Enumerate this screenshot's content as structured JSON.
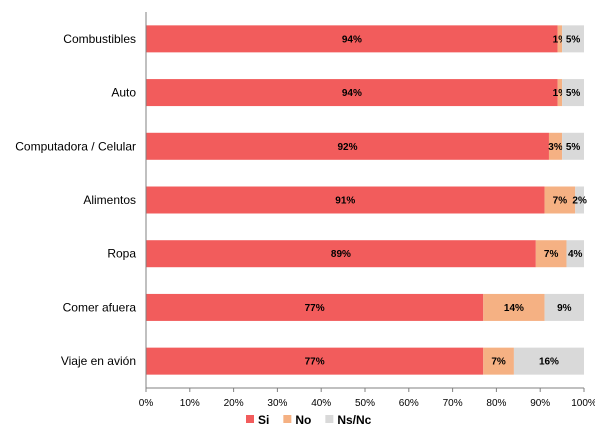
{
  "chart_data": {
    "type": "bar",
    "orientation": "horizontal",
    "stacked": true,
    "title": "",
    "xlabel": "",
    "ylabel": "",
    "xlim": [
      0,
      100
    ],
    "x_ticks": [
      "0%",
      "10%",
      "20%",
      "30%",
      "40%",
      "50%",
      "60%",
      "70%",
      "80%",
      "90%",
      "100%"
    ],
    "grid": false,
    "legend_position": "bottom",
    "categories": [
      "Combustibles",
      "Auto",
      "Computadora / Celular",
      "Alimentos",
      "Ropa",
      "Comer afuera",
      "Viaje en avión"
    ],
    "series": [
      {
        "name": "Si",
        "color": "#f25c5c",
        "values": [
          94,
          94,
          92,
          91,
          89,
          77,
          77
        ],
        "labels": [
          "94%",
          "94%",
          "92%",
          "91%",
          "89%",
          "77%",
          "77%"
        ]
      },
      {
        "name": "No",
        "color": "#f5b183",
        "values": [
          1,
          1,
          3,
          7,
          7,
          14,
          7
        ],
        "labels": [
          "1%",
          "1%",
          "3%",
          "7%",
          "7%",
          "14%",
          "7%"
        ]
      },
      {
        "name": "Ns/Nc",
        "color": "#d9d9d9",
        "values": [
          5,
          5,
          5,
          2,
          4,
          9,
          16
        ],
        "labels": [
          "5%",
          "5%",
          "5%",
          "2%",
          "4%",
          "9%",
          "16%"
        ]
      }
    ]
  }
}
